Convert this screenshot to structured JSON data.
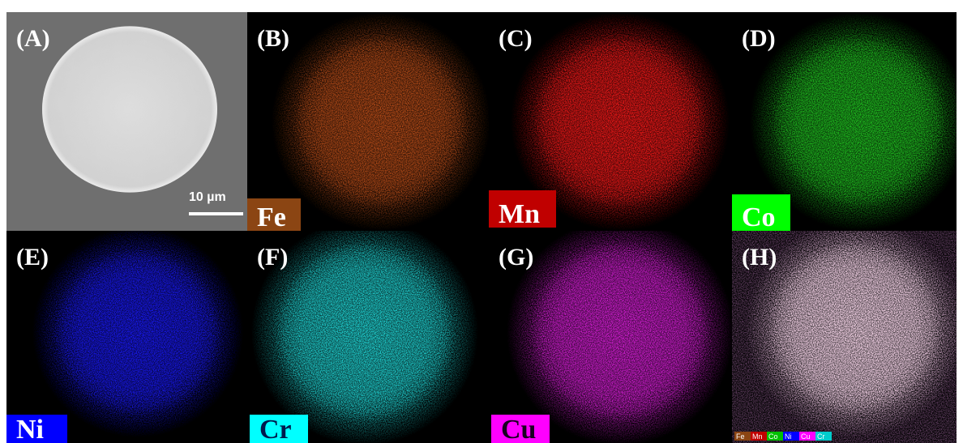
{
  "panels": [
    {
      "label": "(A)",
      "scale_bar": "10 µm"
    },
    {
      "label": "(B)",
      "element": "Fe"
    },
    {
      "label": "(C)",
      "element": "Mn"
    },
    {
      "label": "(D)",
      "element": "Co"
    },
    {
      "label": "(E)",
      "element": "Ni"
    },
    {
      "label": "(F)",
      "element": "Cr"
    },
    {
      "label": "(G)",
      "element": "Cu"
    },
    {
      "label": "(H)",
      "legend": [
        "Fe",
        "Mn",
        "Co",
        "Ni",
        "Cu",
        "Cr"
      ]
    }
  ]
}
